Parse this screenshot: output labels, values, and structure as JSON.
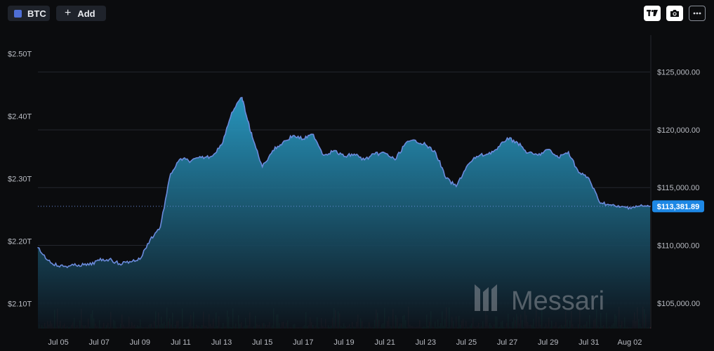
{
  "toolbar": {
    "asset_label": "BTC",
    "asset_color": "#4f6fd6",
    "add_label": "Add",
    "add_icon": "plus-icon",
    "tools": [
      "tradingview-logo-icon",
      "camera-icon",
      "more-options-icon"
    ]
  },
  "watermark": {
    "text": "Messari",
    "logo": "messari-logo-icon"
  },
  "price_tag": {
    "value": "$113,381.89",
    "color": "#1e88e5"
  },
  "chart_data": {
    "type": "area",
    "y_left": {
      "ticks": [
        2.1,
        2.2,
        2.3,
        2.4,
        2.5
      ],
      "tick_labels": [
        "$2.10T",
        "$2.20T",
        "$2.30T",
        "$2.40T",
        "$2.50T"
      ],
      "range": [
        2.06,
        2.53
      ]
    },
    "y_right": {
      "ticks": [
        105000,
        110000,
        115000,
        120000,
        125000
      ],
      "tick_labels": [
        "$105,000.00",
        "$110,000.00",
        "$115,000.00",
        "$120,000.00",
        "$125,000.00"
      ],
      "range": [
        102800,
        128200
      ]
    },
    "x_range": [
      "Jul 04",
      "Aug 03"
    ],
    "x_ticks": [
      "Jul 05",
      "Jul 07",
      "Jul 09",
      "Jul 11",
      "Jul 13",
      "Jul 15",
      "Jul 17",
      "Jul 19",
      "Jul 21",
      "Jul 23",
      "Jul 25",
      "Jul 27",
      "Jul 29",
      "Jul 31",
      "Aug 02"
    ],
    "grid": "horizontal",
    "line_color": "#6b8bdc",
    "fill_top_color": "#2aa3cf",
    "fill_bottom_color": "#0d141c",
    "volume_colors": {
      "up": "#1f7a4a",
      "down": "#7a2d2d"
    },
    "series": [
      {
        "x": [
          "Jul 04",
          "Jul 04 12:00",
          "Jul 05",
          "Jul 05 12:00",
          "Jul 06",
          "Jul 06 12:00",
          "Jul 07",
          "Jul 07 12:00",
          "Jul 08",
          "Jul 08 12:00",
          "Jul 09",
          "Jul 09 12:00",
          "Jul 10",
          "Jul 10 12:00",
          "Jul 11",
          "Jul 11 12:00",
          "Jul 12",
          "Jul 12 12:00",
          "Jul 13",
          "Jul 13 12:00",
          "Jul 14",
          "Jul 14 06:00",
          "Jul 14 12:00",
          "Jul 15",
          "Jul 15 12:00",
          "Jul 16",
          "Jul 16 12:00",
          "Jul 17",
          "Jul 17 12:00",
          "Jul 18",
          "Jul 18 12:00",
          "Jul 19",
          "Jul 19 12:00",
          "Jul 20",
          "Jul 20 12:00",
          "Jul 21",
          "Jul 21 12:00",
          "Jul 22",
          "Jul 22 12:00",
          "Jul 23",
          "Jul 23 12:00",
          "Jul 24",
          "Jul 24 12:00",
          "Jul 25",
          "Jul 25 12:00",
          "Jul 26",
          "Jul 26 12:00",
          "Jul 27",
          "Jul 27 12:00",
          "Jul 28",
          "Jul 28 12:00",
          "Jul 29",
          "Jul 29 12:00",
          "Jul 30",
          "Jul 30 12:00",
          "Jul 31",
          "Jul 31 12:00",
          "Aug 01",
          "Aug 01 12:00",
          "Aug 02",
          "Aug 02 12:00",
          "Aug 03"
        ],
        "values": [
          109800,
          108700,
          108200,
          108200,
          108300,
          108300,
          108700,
          108800,
          108400,
          108600,
          108800,
          110500,
          111600,
          116200,
          117500,
          117300,
          117600,
          117700,
          118700,
          121500,
          122800,
          121000,
          119400,
          116800,
          118200,
          118900,
          119500,
          119200,
          119600,
          117800,
          118200,
          117700,
          117900,
          117400,
          117900,
          118000,
          117400,
          118800,
          119100,
          118700,
          118000,
          115800,
          115100,
          116800,
          117700,
          117900,
          118300,
          119300,
          118900,
          118000,
          117800,
          118300,
          117600,
          118100,
          116300,
          115800,
          113800,
          113500,
          113300,
          113300,
          113400,
          113381.89
        ]
      }
    ]
  }
}
